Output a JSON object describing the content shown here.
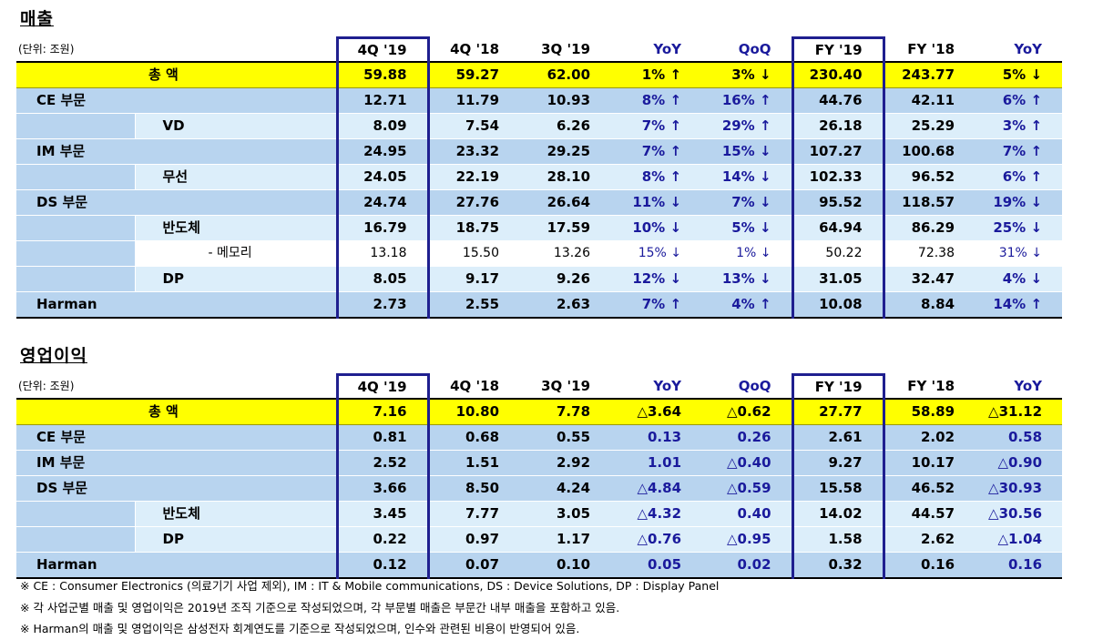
{
  "sales": {
    "title": "매출",
    "unit": "(단위: 조원)",
    "columns": [
      "4Q '19",
      "4Q '18",
      "3Q '19",
      "YoY",
      "QoQ",
      "FY '19",
      "FY '18",
      "YoY"
    ],
    "total": {
      "label": "총      액",
      "values": [
        "59.88",
        "59.27",
        "62.00",
        "1% ↑",
        "3% ↓",
        "230.40",
        "243.77",
        "5% ↓"
      ]
    },
    "rows": [
      {
        "label": "CE 부문",
        "values": [
          "12.71",
          "11.79",
          "10.93",
          "8% ↑",
          "16% ↑",
          "44.76",
          "42.11",
          "6% ↑"
        ]
      },
      {
        "label": "VD",
        "values": [
          "8.09",
          "7.54",
          "6.26",
          "7% ↑",
          "29% ↑",
          "26.18",
          "25.29",
          "3% ↑"
        ]
      },
      {
        "label": "IM 부문",
        "values": [
          "24.95",
          "23.32",
          "29.25",
          "7% ↑",
          "15% ↓",
          "107.27",
          "100.68",
          "7% ↑"
        ]
      },
      {
        "label": "무선",
        "values": [
          "24.05",
          "22.19",
          "28.10",
          "8% ↑",
          "14% ↓",
          "102.33",
          "96.52",
          "6% ↑"
        ]
      },
      {
        "label": "DS 부문",
        "values": [
          "24.74",
          "27.76",
          "26.64",
          "11% ↓",
          "7% ↓",
          "95.52",
          "118.57",
          "19% ↓"
        ]
      },
      {
        "label": "반도체",
        "values": [
          "16.79",
          "18.75",
          "17.59",
          "10% ↓",
          "5% ↓",
          "64.94",
          "86.29",
          "25% ↓"
        ]
      },
      {
        "label": "- 메모리",
        "values": [
          "13.18",
          "15.50",
          "13.26",
          "15% ↓",
          "1% ↓",
          "50.22",
          "72.38",
          "31% ↓"
        ]
      },
      {
        "label": "DP",
        "values": [
          "8.05",
          "9.17",
          "9.26",
          "12% ↓",
          "13% ↓",
          "31.05",
          "32.47",
          "4% ↓"
        ]
      },
      {
        "label": "Harman",
        "values": [
          "2.73",
          "2.55",
          "2.63",
          "7% ↑",
          "4% ↑",
          "10.08",
          "8.84",
          "14% ↑"
        ]
      }
    ]
  },
  "op_profit": {
    "title": "영업이익",
    "unit": "(단위: 조원)",
    "columns": [
      "4Q '19",
      "4Q '18",
      "3Q '19",
      "YoY",
      "QoQ",
      "FY '19",
      "FY '18",
      "YoY"
    ],
    "total": {
      "label": "총      액",
      "values": [
        "7.16",
        "10.80",
        "7.78",
        "△3.64",
        "△0.62",
        "27.77",
        "58.89",
        "△31.12"
      ]
    },
    "rows": [
      {
        "label": "CE 부문",
        "values": [
          "0.81",
          "0.68",
          "0.55",
          "0.13",
          "0.26",
          "2.61",
          "2.02",
          "0.58"
        ]
      },
      {
        "label": "IM 부문",
        "values": [
          "2.52",
          "1.51",
          "2.92",
          "1.01",
          "△0.40",
          "9.27",
          "10.17",
          "△0.90"
        ]
      },
      {
        "label": "DS 부문",
        "values": [
          "3.66",
          "8.50",
          "4.24",
          "△4.84",
          "△0.59",
          "15.58",
          "46.52",
          "△30.93"
        ]
      },
      {
        "label": "반도체",
        "values": [
          "3.45",
          "7.77",
          "3.05",
          "△4.32",
          "0.40",
          "14.02",
          "44.57",
          "△30.56"
        ]
      },
      {
        "label": "DP",
        "values": [
          "0.22",
          "0.97",
          "1.17",
          "△0.76",
          "△0.95",
          "1.58",
          "2.62",
          "△1.04"
        ]
      },
      {
        "label": "Harman",
        "values": [
          "0.12",
          "0.07",
          "0.10",
          "0.05",
          "0.02",
          "0.32",
          "0.16",
          "0.16"
        ]
      }
    ]
  },
  "notes": [
    "※ CE : Consumer Electronics (의료기기 사업 제외),  IM : IT & Mobile communications,  DS : Device Solutions,  DP : Display Panel",
    "※ 각 사업군별 매출 및 영업이익은 2019년 조직 기준으로 작성되었으며, 각 부문별 매출은 부문간 내부 매출을 포함하고 있음.",
    "※ Harman의 매출 및 영업이익은 삼성전자 회계연도를 기준으로 작성되었으며, 인수와 관련된 비용이 반영되어 있음."
  ]
}
